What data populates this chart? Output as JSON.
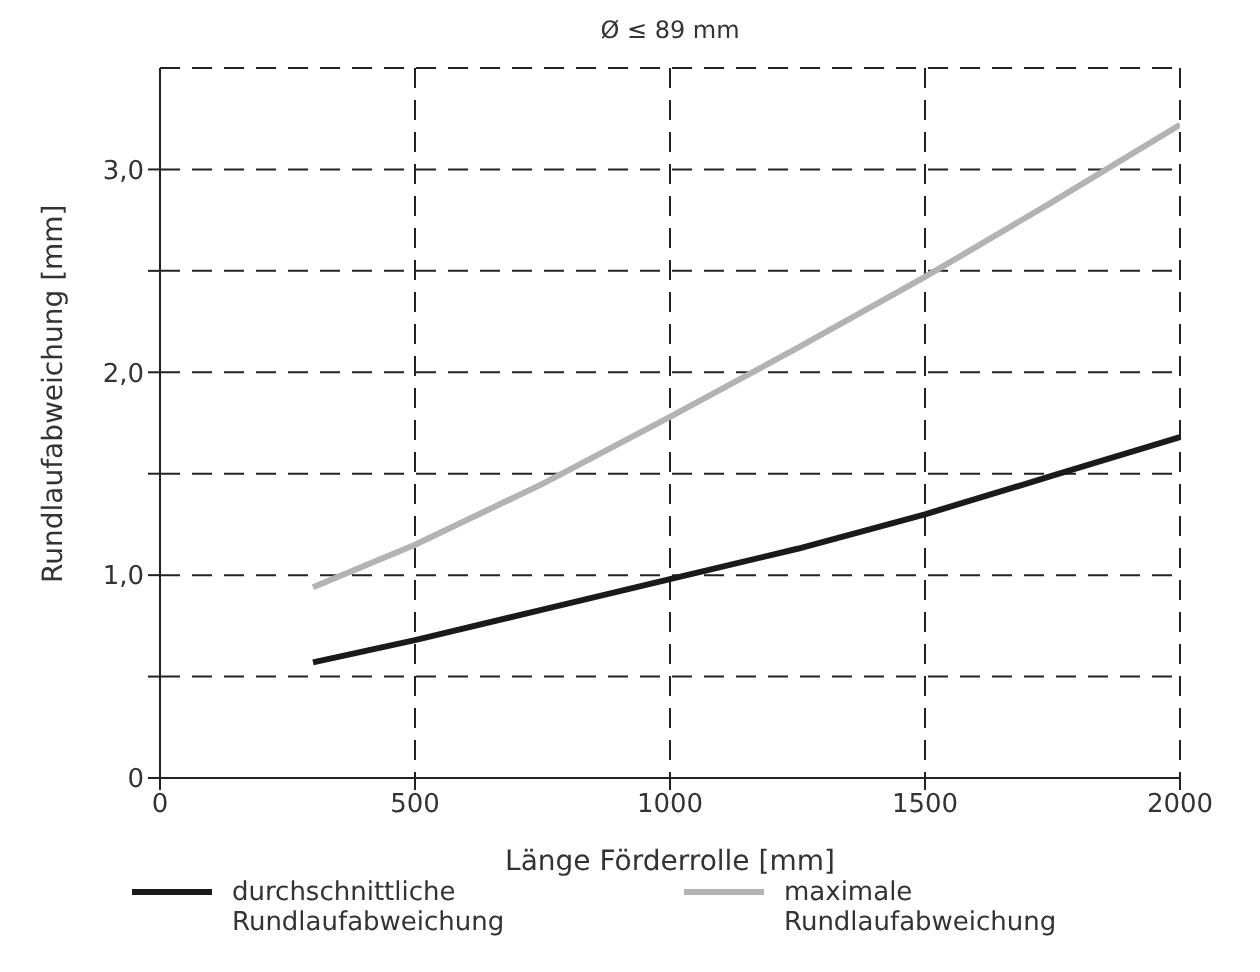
{
  "chart_data": {
    "type": "line",
    "title": "Ø ≤ 89 mm",
    "xlabel": "Länge Förderrolle [mm]",
    "ylabel": "Rundlaufabweichung [mm]",
    "x": [
      300,
      500,
      750,
      1000,
      1250,
      1500,
      1750,
      2000
    ],
    "series": [
      {
        "name": "durchschnittliche Rundlaufabweichung",
        "color": "#1a1a1a",
        "values": [
          0.57,
          0.68,
          0.83,
          0.98,
          1.13,
          1.3,
          1.49,
          1.68
        ]
      },
      {
        "name": "maximale Rundlaufabweichung",
        "color": "#b3b3b3",
        "values": [
          0.94,
          1.15,
          1.45,
          1.78,
          2.12,
          2.47,
          2.84,
          3.22
        ]
      }
    ],
    "xlim": [
      0,
      2000
    ],
    "xticks": [
      0,
      500,
      1000,
      1500,
      2000
    ],
    "ylim": [
      0,
      3.5
    ],
    "yticks": [
      0,
      {
        "value": 0.5,
        "label": null
      },
      {
        "value": 1,
        "label": "1,0"
      },
      {
        "value": 1.5,
        "label": null
      },
      {
        "value": 2,
        "label": "2,0"
      },
      {
        "value": 2.5,
        "label": null
      },
      {
        "value": 3,
        "label": "3,0"
      }
    ],
    "grid": true,
    "legend": "bottom",
    "marker": "none",
    "line_style": "solid"
  }
}
